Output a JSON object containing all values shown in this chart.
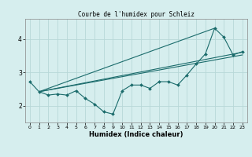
{
  "title": "Courbe de l'humidex pour Schleiz",
  "xlabel": "Humidex (Indice chaleur)",
  "bg_color": "#d6eeee",
  "grid_color": "#b8d8d8",
  "line_color": "#1a6b6b",
  "xlim": [
    -0.5,
    23.5
  ],
  "ylim": [
    1.5,
    4.6
  ],
  "yticks": [
    2,
    3,
    4
  ],
  "xticks": [
    0,
    1,
    2,
    3,
    4,
    5,
    6,
    7,
    8,
    9,
    10,
    11,
    12,
    13,
    14,
    15,
    16,
    17,
    18,
    19,
    20,
    21,
    22,
    23
  ],
  "line1_x": [
    0,
    1,
    2,
    3,
    4,
    5,
    6,
    7,
    8,
    9,
    10,
    11,
    12,
    13,
    14,
    15,
    16,
    17,
    18,
    19,
    20,
    21,
    22,
    23
  ],
  "line1_y": [
    2.72,
    2.42,
    2.32,
    2.35,
    2.32,
    2.45,
    2.22,
    2.05,
    1.82,
    1.75,
    2.45,
    2.62,
    2.62,
    2.52,
    2.72,
    2.72,
    2.62,
    2.92,
    3.25,
    3.55,
    4.32,
    4.05,
    3.52,
    3.62
  ],
  "line2_x": [
    1,
    23
  ],
  "line2_y": [
    2.42,
    3.6
  ],
  "line3_x": [
    1,
    20
  ],
  "line3_y": [
    2.42,
    4.32
  ],
  "line4_x": [
    1,
    23
  ],
  "line4_y": [
    2.42,
    3.52
  ]
}
